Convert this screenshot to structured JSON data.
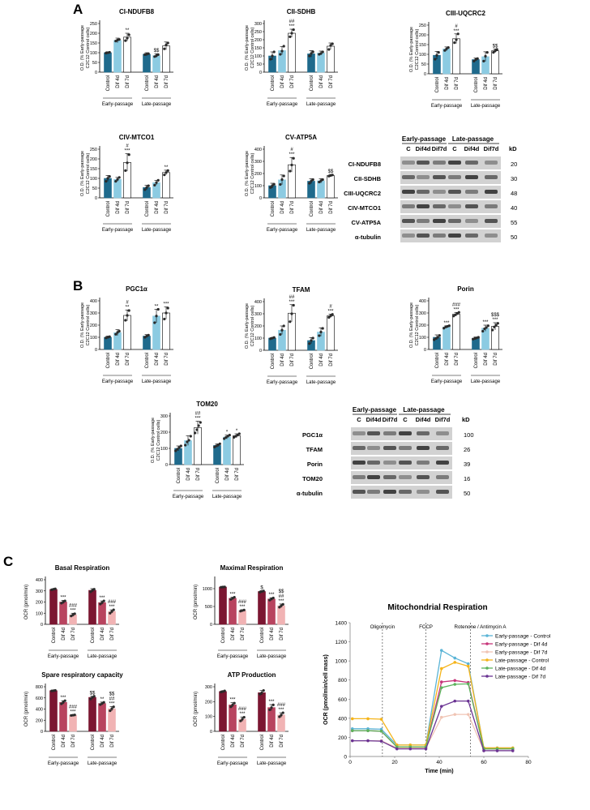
{
  "panels": {
    "A": "A",
    "B": "B",
    "C": "C"
  },
  "colors": {
    "early_dark": "#1f6a8c",
    "early_light": "#8ccbe2",
    "white": "#ffffff",
    "c_dark": "#7b1631",
    "c_mid": "#b8445f",
    "c_light": "#f1b3b4",
    "dot": "#2a2a2a"
  },
  "shared": {
    "ylabel_od": "O.D. (% Early-passage C2C12 Control cells)",
    "ylabel_ocr": "OCR (pmol/min)",
    "categories": [
      "Control",
      "Dif 4d",
      "Dif 7d"
    ],
    "groups": [
      "Early-passage",
      "Late-passage"
    ]
  },
  "bar_charts": [
    {
      "id": "cindufb8",
      "title": "CI-NDUFB8",
      "ymax": 250,
      "ticks": [
        0,
        50,
        100,
        150,
        200,
        250
      ],
      "palette": "A",
      "values": [
        100,
        163,
        180,
        92,
        85,
        135
      ],
      "err": [
        5,
        12,
        20,
        8,
        10,
        20
      ],
      "points": [
        [
          98,
          100,
          102
        ],
        [
          160,
          165,
          168
        ],
        [
          162,
          175,
          192
        ],
        [
          90,
          93,
          95
        ],
        [
          80,
          85,
          90
        ],
        [
          120,
          140,
          150
        ]
      ],
      "annotations": [
        "",
        "",
        "**",
        "",
        "$$",
        ""
      ]
    },
    {
      "id": "ciisdhb",
      "title": "CII-SDHB",
      "ymax": 300,
      "ticks": [
        0,
        50,
        100,
        150,
        200,
        250,
        300
      ],
      "palette": "A",
      "values": [
        100,
        133,
        240,
        113,
        118,
        160
      ],
      "err": [
        25,
        25,
        25,
        20,
        12,
        20
      ],
      "points": [
        [
          80,
          100,
          125
        ],
        [
          110,
          130,
          160
        ],
        [
          218,
          240,
          262
        ],
        [
          100,
          115,
          125
        ],
        [
          110,
          115,
          125
        ],
        [
          140,
          165,
          175
        ]
      ],
      "annotations": [
        "",
        "",
        "##\n***",
        "",
        "",
        ""
      ]
    },
    {
      "id": "ciiiuqcrc2",
      "title": "CIII-UQCRC2",
      "ymax": 250,
      "ticks": [
        0,
        50,
        100,
        150,
        200,
        250
      ],
      "palette": "A",
      "values": [
        95,
        128,
        180,
        73,
        88,
        118
      ],
      "err": [
        20,
        10,
        25,
        8,
        25,
        10
      ],
      "points": [
        [
          75,
          95,
          110
        ],
        [
          120,
          128,
          135
        ],
        [
          160,
          175,
          205
        ],
        [
          65,
          73,
          78
        ],
        [
          65,
          90,
          110
        ],
        [
          110,
          118,
          125
        ]
      ],
      "annotations": [
        "",
        "",
        "#\n***",
        "",
        "",
        "$$"
      ]
    },
    {
      "id": "civmtco1",
      "title": "CIV-MTCO1",
      "ymax": 250,
      "ticks": [
        0,
        50,
        100,
        150,
        200,
        250
      ],
      "palette": "A",
      "values": [
        100,
        95,
        182,
        53,
        78,
        130
      ],
      "err": [
        15,
        10,
        45,
        12,
        12,
        12
      ],
      "points": [
        [
          85,
          100,
          110
        ],
        [
          85,
          95,
          105
        ],
        [
          140,
          180,
          222
        ],
        [
          42,
          53,
          62
        ],
        [
          65,
          78,
          90
        ],
        [
          118,
          130,
          140
        ]
      ],
      "annotations": [
        "",
        "",
        "#\n***",
        "",
        "",
        "**"
      ]
    },
    {
      "id": "cvatp5a",
      "title": "CV-ATP5A",
      "ymax": 400,
      "ticks": [
        0,
        100,
        200,
        300,
        400
      ],
      "palette": "A",
      "values": [
        100,
        148,
        272,
        137,
        140,
        183
      ],
      "err": [
        20,
        40,
        60,
        20,
        18,
        10
      ],
      "points": [
        [
          85,
          100,
          112
        ],
        [
          110,
          150,
          180
        ],
        [
          220,
          270,
          325
        ],
        [
          120,
          138,
          150
        ],
        [
          130,
          140,
          150
        ],
        [
          178,
          183,
          188
        ]
      ],
      "annotations": [
        "",
        "",
        "#\n***",
        "",
        "",
        "$$"
      ]
    },
    {
      "id": "pgc1a",
      "title": "PGC1α",
      "ymax": 400,
      "ticks": [
        0,
        100,
        200,
        300,
        400
      ],
      "palette": "A",
      "values": [
        100,
        138,
        280,
        110,
        275,
        300
      ],
      "err": [
        10,
        25,
        45,
        12,
        55,
        50
      ],
      "points": [
        [
          95,
          100,
          105
        ],
        [
          125,
          140,
          150
        ],
        [
          240,
          280,
          320
        ],
        [
          100,
          110,
          118
        ],
        [
          220,
          275,
          330
        ],
        [
          250,
          300,
          340
        ]
      ],
      "annotations": [
        "",
        "",
        "#\n**",
        "",
        "**",
        "***"
      ]
    },
    {
      "id": "tfam",
      "title": "TFAM",
      "ymax": 400,
      "ticks": [
        0,
        100,
        200,
        300,
        400
      ],
      "palette": "A",
      "values": [
        100,
        165,
        305,
        80,
        150,
        283
      ],
      "err": [
        5,
        35,
        70,
        25,
        35,
        15
      ],
      "points": [
        [
          95,
          100,
          105
        ],
        [
          130,
          165,
          200
        ],
        [
          235,
          300,
          370
        ],
        [
          55,
          80,
          100
        ],
        [
          120,
          150,
          180
        ],
        [
          270,
          283,
          295
        ]
      ],
      "annotations": [
        "",
        "",
        "##\n***",
        "",
        "",
        "#\n***"
      ]
    },
    {
      "id": "porin",
      "title": "Porin",
      "ymax": 400,
      "ticks": [
        0,
        100,
        200,
        300,
        400
      ],
      "palette": "A",
      "values": [
        100,
        185,
        290,
        92,
        175,
        190
      ],
      "err": [
        20,
        10,
        15,
        10,
        25,
        30
      ],
      "points": [
        [
          80,
          90,
          100,
          115
        ],
        [
          175,
          185,
          190,
          195
        ],
        [
          275,
          285,
          295,
          305
        ],
        [
          85,
          90,
          95,
          100
        ],
        [
          150,
          170,
          180,
          195
        ],
        [
          160,
          185,
          200,
          215
        ]
      ],
      "annotations": [
        "",
        "***",
        "###\n***",
        "",
        "***",
        "$$$\n***"
      ]
    },
    {
      "id": "tom20",
      "title": "TOM20",
      "ymax": 300,
      "ticks": [
        0,
        100,
        200,
        300
      ],
      "palette": "A",
      "values": [
        100,
        148,
        228,
        118,
        170,
        178
      ],
      "err": [
        15,
        30,
        40,
        10,
        12,
        12
      ],
      "points": [
        [
          85,
          95,
          105,
          115
        ],
        [
          120,
          140,
          150,
          175
        ],
        [
          195,
          215,
          240,
          260
        ],
        [
          108,
          115,
          120,
          128
        ],
        [
          160,
          168,
          175,
          182
        ],
        [
          168,
          175,
          182,
          190
        ]
      ],
      "annotations": [
        "",
        "",
        "##\n***",
        "",
        "*",
        "*"
      ]
    },
    {
      "id": "basal",
      "title": "Basal Respiration",
      "ymax": 400,
      "ticks": [
        0,
        100,
        200,
        300,
        400
      ],
      "palette": "C",
      "values": [
        313,
        200,
        85,
        305,
        195,
        115
      ],
      "err": [
        5,
        15,
        15,
        15,
        15,
        15
      ],
      "points": [
        [
          310,
          315,
          318
        ],
        [
          190,
          200,
          210
        ],
        [
          75,
          85,
          95
        ],
        [
          292,
          305,
          315
        ],
        [
          182,
          195,
          210
        ],
        [
          100,
          115,
          130
        ]
      ],
      "annotations": [
        "",
        "***",
        "###\n***",
        "",
        "***",
        "###\n***"
      ]
    },
    {
      "id": "maximal",
      "title": "Maximal Respiration",
      "ymax": 1250,
      "ticks": [
        0,
        500,
        1000
      ],
      "palette": "C",
      "values": [
        1045,
        730,
        385,
        920,
        710,
        520
      ],
      "err": [
        10,
        30,
        25,
        25,
        35,
        50
      ],
      "points": [
        [
          1040,
          1045,
          1050
        ],
        [
          700,
          730,
          760
        ],
        [
          370,
          385,
          400
        ],
        [
          900,
          920,
          935
        ],
        [
          680,
          710,
          740
        ],
        [
          480,
          520,
          560
        ]
      ],
      "annotations": [
        "",
        "***",
        "###\n***",
        "$",
        "***",
        "$$\n##\n***"
      ]
    },
    {
      "id": "spare",
      "title": "Spare respiratory capacity",
      "ymax": 800,
      "ticks": [
        0,
        200,
        400,
        600,
        800
      ],
      "palette": "C",
      "values": [
        730,
        520,
        290,
        610,
        500,
        405
      ],
      "err": [
        5,
        30,
        10,
        20,
        25,
        40
      ],
      "points": [
        [
          725,
          730,
          735
        ],
        [
          495,
          520,
          550
        ],
        [
          285,
          290,
          295
        ],
        [
          580,
          610,
          630
        ],
        [
          480,
          500,
          520
        ],
        [
          370,
          405,
          440
        ]
      ],
      "annotations": [
        "",
        "***",
        "###\n***",
        "$$",
        "**",
        "$$\n##\n***"
      ]
    },
    {
      "id": "atp",
      "title": "ATP Production",
      "ymax": 300,
      "ticks": [
        0,
        100,
        200,
        300
      ],
      "palette": "C",
      "values": [
        268,
        178,
        82,
        260,
        160,
        110
      ],
      "err": [
        5,
        15,
        15,
        15,
        20,
        15
      ],
      "points": [
        [
          265,
          268,
          272
        ],
        [
          165,
          178,
          190
        ],
        [
          70,
          82,
          95
        ],
        [
          250,
          260,
          275
        ],
        [
          145,
          160,
          178
        ],
        [
          98,
          110,
          125
        ]
      ],
      "annotations": [
        "",
        "***",
        "###\n***",
        "",
        "***",
        "###\n***"
      ]
    }
  ],
  "blots": [
    {
      "id": "blotA",
      "groups": [
        "Early-passage",
        "Late-passage"
      ],
      "lanes": [
        "C",
        "Dif4d",
        "Dif7d",
        "C",
        "Dif4d",
        "Dif7d"
      ],
      "kd_label": "kD",
      "rows": [
        {
          "label": "CI-NDUFB8",
          "kd": "20"
        },
        {
          "label": "CII-SDHB",
          "kd": "30"
        },
        {
          "label": "CIII-UQCRC2",
          "kd": "48"
        },
        {
          "label": "CIV-MTCO1",
          "kd": "40"
        },
        {
          "label": "CV-ATP5A",
          "kd": "55"
        },
        {
          "label": "α-tubulin",
          "kd": "50"
        }
      ]
    },
    {
      "id": "blotB",
      "groups": [
        "Early-passage",
        "Late-passage"
      ],
      "lanes": [
        "C",
        "Dif4d",
        "Dif7d",
        "C",
        "Dif4d",
        "Dif7d"
      ],
      "kd_label": "kD",
      "rows": [
        {
          "label": "PGC1α",
          "kd": "100"
        },
        {
          "label": "TFAM",
          "kd": "26"
        },
        {
          "label": "Porin",
          "kd": "39"
        },
        {
          "label": "TOM20",
          "kd": "16"
        },
        {
          "label": "α-tubulin",
          "kd": "50"
        }
      ]
    }
  ],
  "chart_data": {
    "type": "line",
    "title": "Mitochondrial Respiration",
    "xlabel": "Time (min)",
    "ylabel": "OCR (pmol/min/cell mass)",
    "xlim": [
      0,
      80
    ],
    "ylim": [
      0,
      1400
    ],
    "xticks": [
      0,
      20,
      40,
      60,
      80
    ],
    "yticks": [
      0,
      200,
      400,
      600,
      800,
      1000,
      1200,
      1400
    ],
    "injections": [
      {
        "label": "Oligomycin",
        "x": 14.5
      },
      {
        "label": "FCCP",
        "x": 34
      },
      {
        "label": "Rotenone / Antimycin A",
        "x": 54
      }
    ],
    "x": [
      1,
      8,
      14,
      21,
      27,
      34,
      41,
      47,
      53,
      60,
      66,
      73
    ],
    "series": [
      {
        "name": "Early-passage - Control",
        "color": "#5ab4d6",
        "values": [
          290,
          290,
          285,
          120,
          120,
          120,
          1110,
          1030,
          970,
          90,
          90,
          90
        ]
      },
      {
        "name": "Early-passage - Dif 4d",
        "color": "#c7357a",
        "values": [
          270,
          270,
          265,
          100,
          100,
          100,
          780,
          795,
          775,
          80,
          80,
          80
        ]
      },
      {
        "name": "Early-passage - Dif 7d",
        "color": "#f0c4b4",
        "values": [
          165,
          165,
          165,
          90,
          90,
          90,
          410,
          440,
          440,
          60,
          60,
          60
        ]
      },
      {
        "name": "Late-passage - Control",
        "color": "#f5b41a",
        "values": [
          395,
          395,
          390,
          120,
          120,
          120,
          920,
          985,
          945,
          90,
          90,
          90
        ]
      },
      {
        "name": "Late-passage - Dif 4d",
        "color": "#5cb35c",
        "values": [
          270,
          270,
          265,
          100,
          100,
          100,
          720,
          755,
          760,
          80,
          80,
          80
        ]
      },
      {
        "name": "Late-passage - Dif 7d",
        "color": "#6a3393",
        "values": [
          165,
          165,
          160,
          80,
          80,
          80,
          525,
          580,
          580,
          60,
          60,
          60
        ]
      }
    ]
  }
}
